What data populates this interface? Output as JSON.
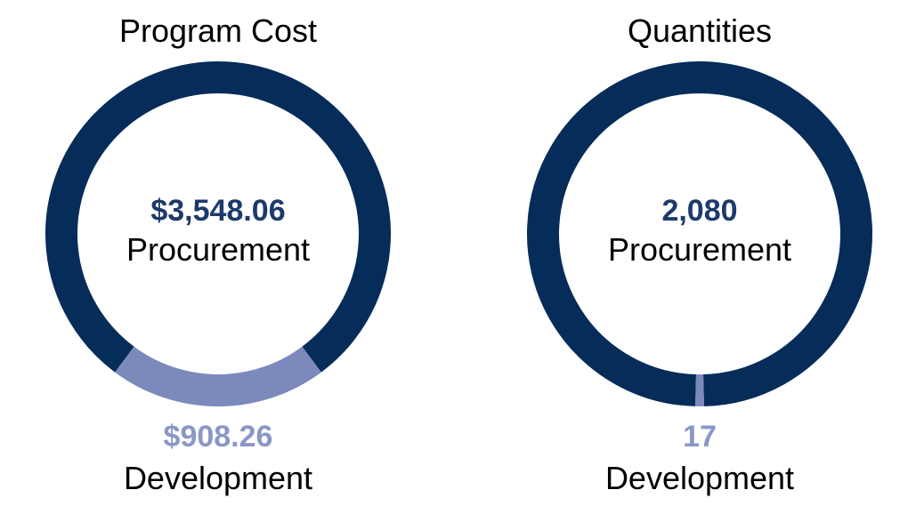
{
  "colors": {
    "procurement": "#062c59",
    "development": "#7b89bb",
    "label_dark": "#1c3a6b",
    "label_light": "#8a97c6"
  },
  "chart_data": [
    {
      "type": "pie",
      "variant": "donut",
      "title": "Program Cost",
      "slices": [
        {
          "label": "Procurement",
          "value": 3548.06,
          "display": "$3,548.06"
        },
        {
          "label": "Development",
          "value": 908.26,
          "display": "$908.26"
        }
      ]
    },
    {
      "type": "pie",
      "variant": "donut",
      "title": "Quantities",
      "slices": [
        {
          "label": "Procurement",
          "value": 2080,
          "display": "2,080"
        },
        {
          "label": "Development",
          "value": 17,
          "display": "17"
        }
      ]
    }
  ]
}
